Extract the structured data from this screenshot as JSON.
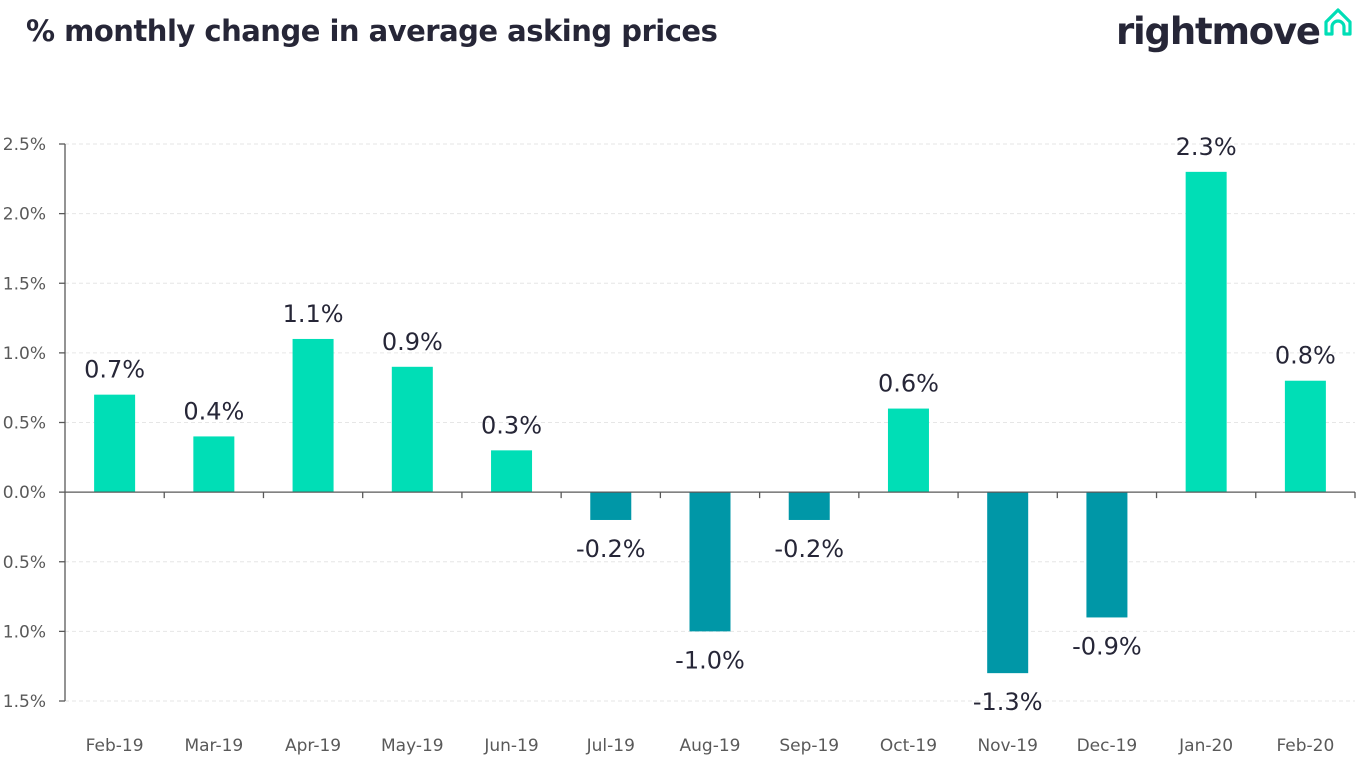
{
  "header": {
    "title": "% monthly change in average asking prices",
    "brand": "rightmove",
    "brand_icon": "house-icon"
  },
  "colors": {
    "positive": "#00deb6",
    "negative": "#0097a7",
    "text": "#262637",
    "axis": "#595959",
    "grid": "#e6e6e6"
  },
  "chart_data": {
    "type": "bar",
    "title": "% monthly change in average asking prices",
    "xlabel": "",
    "ylabel": "",
    "ylim": [
      -1.5,
      2.5
    ],
    "grid": true,
    "y_ticks": [
      2.5,
      2.0,
      1.5,
      1.0,
      0.5,
      0.0,
      -0.5,
      -1.0,
      -1.5
    ],
    "y_tick_labels": [
      "2.5%",
      "2.0%",
      "1.5%",
      "1.0%",
      "0.5%",
      "0.0%",
      "0.5%",
      "1.0%",
      "1.5%"
    ],
    "categories": [
      "Feb-19",
      "Mar-19",
      "Apr-19",
      "May-19",
      "Jun-19",
      "Jul-19",
      "Aug-19",
      "Sep-19",
      "Oct-19",
      "Nov-19",
      "Dec-19",
      "Jan-20",
      "Feb-20"
    ],
    "values": [
      0.7,
      0.4,
      1.1,
      0.9,
      0.3,
      -0.2,
      -1.0,
      -0.2,
      0.6,
      -1.3,
      -0.9,
      2.3,
      0.8
    ],
    "data_labels": [
      "0.7%",
      "0.4%",
      "1.1%",
      "0.9%",
      "0.3%",
      "-0.2%",
      "-1.0%",
      "-0.2%",
      "0.6%",
      "-1.3%",
      "-0.9%",
      "2.3%",
      "0.8%"
    ]
  }
}
